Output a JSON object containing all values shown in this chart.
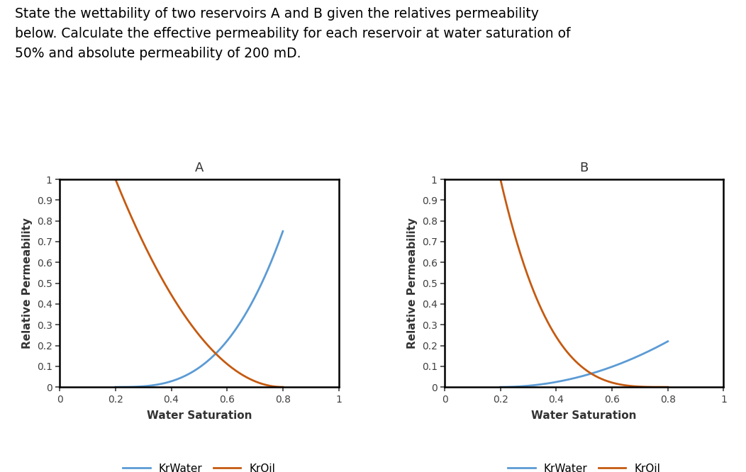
{
  "title_text": "State the wettability of two reservoirs A and B given the relatives permeability\nbelow. Calculate the effective permeability for each reservoir at water saturation of\n50% and absolute permeability of 200 mD.",
  "title_fontsize": 13.5,
  "title_color": "#000000",
  "subplot_A_title": "A",
  "subplot_B_title": "B",
  "xlabel": "Water Saturation",
  "ylabel": "Relative Permeability",
  "xlim": [
    0,
    1
  ],
  "ylim": [
    0,
    1
  ],
  "xticks": [
    0,
    0.2,
    0.4,
    0.6,
    0.8,
    1
  ],
  "yticks": [
    0,
    0.1,
    0.2,
    0.3,
    0.4,
    0.5,
    0.6,
    0.7,
    0.8,
    0.9,
    1
  ],
  "color_water": "#5B9BD5",
  "color_oil": "#C55A11",
  "legend_water": "KrWater",
  "legend_oil": "KrOil",
  "A_Swi": 0.2,
  "A_Sor": 0.2,
  "A_krw_max": 0.75,
  "A_kro_max": 1.0,
  "A_nw": 3.0,
  "A_no": 2.0,
  "B_Swi": 0.2,
  "B_Sor": 0.2,
  "B_krw_max": 0.22,
  "B_kro_max": 1.0,
  "B_nw": 2.0,
  "B_no": 3.5,
  "background_color": "#ffffff",
  "axes_linewidth": 1.8
}
